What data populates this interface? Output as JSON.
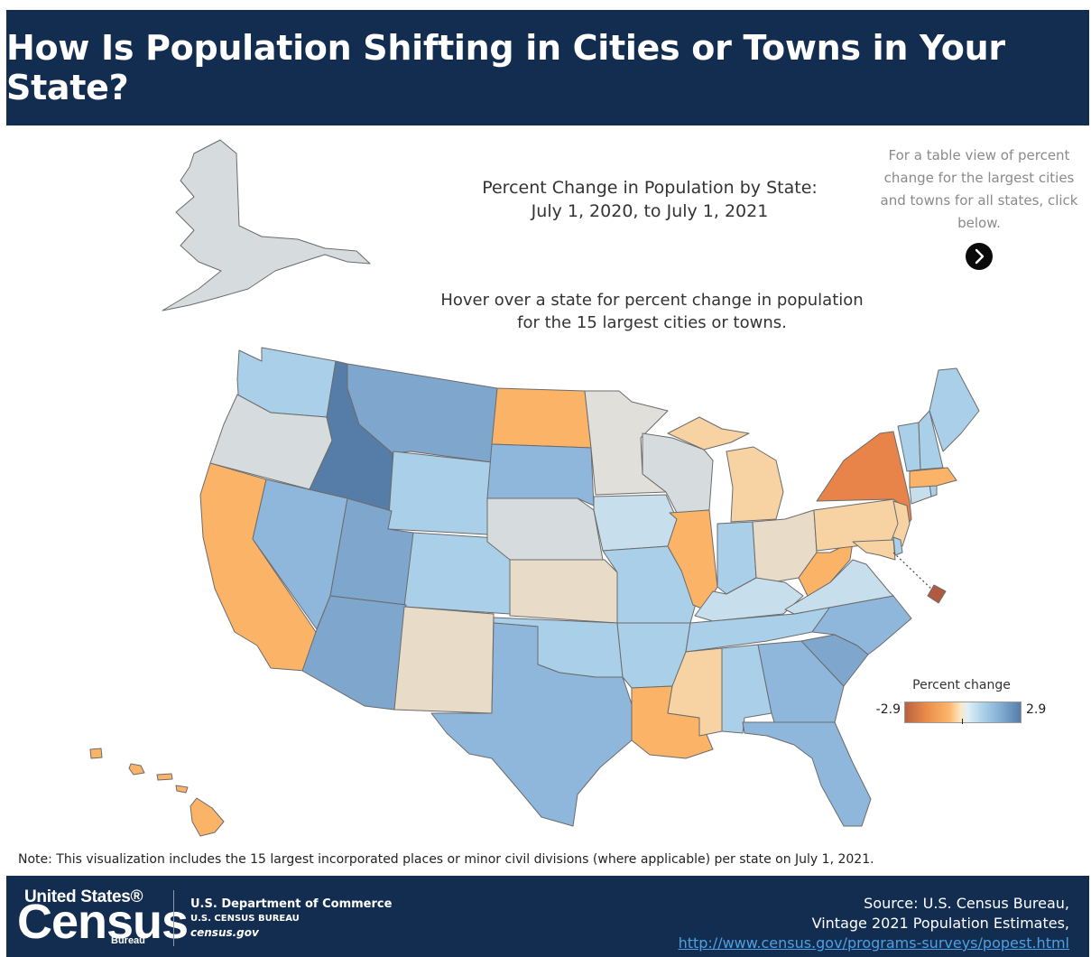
{
  "header": {
    "title": "How Is Population Shifting in Cities or Towns in Your State?"
  },
  "map": {
    "title_line1": "Percent Change in Population by State:",
    "title_line2": "July 1, 2020, to July 1, 2021",
    "hover_line1": "Hover over a state for percent change in population",
    "hover_line2": "for the 15 largest cities or towns.",
    "table_link_text": "For a table view of percent change for the largest cities and towns for all states, click below.",
    "table_link_icon": "chevron-right-icon"
  },
  "legend": {
    "title": "Percent change",
    "min": "-2.9",
    "max": "2.9"
  },
  "colors": {
    "header_bg": "#132d51",
    "dark_blue": "#557da8",
    "blue": "#7fa6cd",
    "mid_blue": "#8fb7dc",
    "light_blue": "#a9d0e8",
    "pale_blue": "#c7dfec",
    "gray": "#d6dcde",
    "warm_gray": "#e1dfd9",
    "beige": "#e8dcc8",
    "pale_orange": "#f7d3a4",
    "orange": "#fbb467",
    "dark_orange": "#e8834a",
    "red": "#b05a3f"
  },
  "note": "Note: This visualization includes the 15 largest incorporated places or minor civil divisions (where applicable) per state on July 1, 2021.",
  "footer": {
    "logo_top": "United States®",
    "logo_big": "Census",
    "logo_small": "Bureau",
    "dept": "U.S. Department of Commerce",
    "bureau": "U.S. CENSUS BUREAU",
    "site": "census.gov",
    "source_line1": "Source: U.S. Census Bureau,",
    "source_line2": "Vintage 2021 Population Estimates,",
    "source_url": "http://www.census.gov/programs-surveys/popest.html"
  }
}
